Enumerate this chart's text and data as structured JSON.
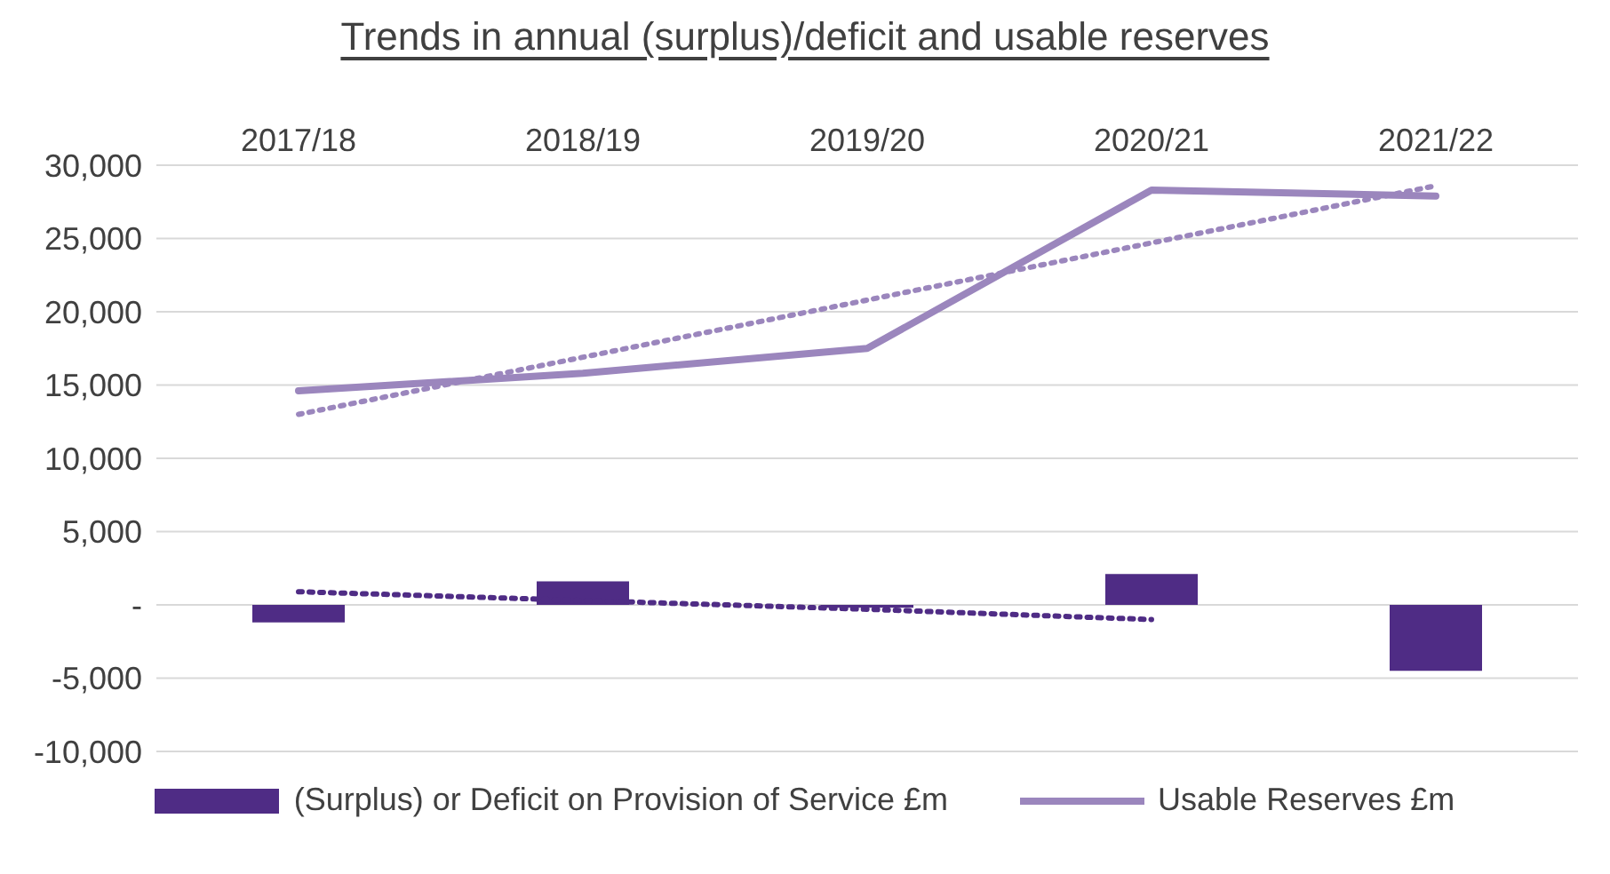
{
  "chart_data": {
    "type": "bar",
    "title": "Trends in annual (surplus)/deficit and usable reserves",
    "categories": [
      "2017/18",
      "2018/19",
      "2019/20",
      "2020/21",
      "2021/22"
    ],
    "series": [
      {
        "name": "(Surplus) or Deficit on Provision of Service £m",
        "color": "#4f2c85",
        "values": [
          -1200,
          1600,
          -200,
          2100,
          -4500
        ]
      },
      {
        "name": "Usable Reserves £m",
        "type": "line",
        "color": "#9b86bd",
        "line_style": "solid",
        "values": [
          14600,
          15800,
          17500,
          28300,
          27900
        ]
      },
      {
        "type": "line",
        "color": "#4f2c85",
        "line_style": "dotted",
        "values": [
          900,
          300,
          -300,
          -1000,
          null
        ]
      },
      {
        "type": "line",
        "color": "#9b86bd",
        "line_style": "dotted",
        "values": [
          13000,
          16900,
          20800,
          24700,
          28600
        ]
      }
    ],
    "ylim": [
      -10000,
      30000
    ],
    "yticks": [
      {
        "value": -10000,
        "label": "-10,000"
      },
      {
        "value": -5000,
        "label": "-5,000"
      },
      {
        "value": 0,
        "label": "-"
      },
      {
        "value": 5000,
        "label": "5,000"
      },
      {
        "value": 10000,
        "label": "10,000"
      },
      {
        "value": 15000,
        "label": "15,000"
      },
      {
        "value": 20000,
        "label": "20,000"
      },
      {
        "value": 25000,
        "label": "25,000"
      },
      {
        "value": 30000,
        "label": "30,000"
      }
    ],
    "grid": "y",
    "legend": "bottom",
    "marker": "none"
  }
}
